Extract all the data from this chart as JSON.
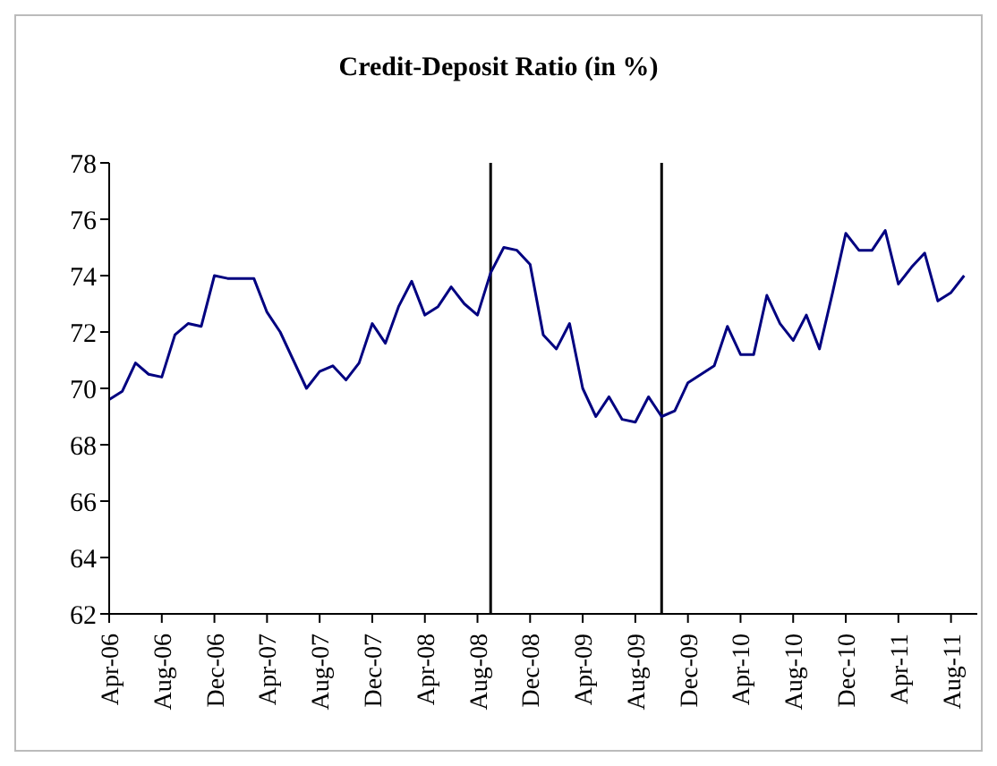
{
  "chart_data": {
    "type": "line",
    "title": "Credit-Deposit Ratio (in %)",
    "x": [
      "2006-04",
      "2006-05",
      "2006-06",
      "2006-07",
      "2006-08",
      "2006-09",
      "2006-10",
      "2006-11",
      "2006-12",
      "2007-01",
      "2007-02",
      "2007-03",
      "2007-04",
      "2007-05",
      "2007-06",
      "2007-07",
      "2007-08",
      "2007-09",
      "2007-10",
      "2007-11",
      "2007-12",
      "2008-01",
      "2008-02",
      "2008-03",
      "2008-04",
      "2008-05",
      "2008-06",
      "2008-07",
      "2008-08",
      "2008-09",
      "2008-10",
      "2008-11",
      "2008-12",
      "2009-01",
      "2009-02",
      "2009-03",
      "2009-04",
      "2009-05",
      "2009-06",
      "2009-07",
      "2009-08",
      "2009-09",
      "2009-10",
      "2009-11",
      "2009-12",
      "2010-01",
      "2010-02",
      "2010-03",
      "2010-04",
      "2010-05",
      "2010-06",
      "2010-07",
      "2010-08",
      "2010-09",
      "2010-10",
      "2010-11",
      "2010-12",
      "2011-01",
      "2011-02",
      "2011-03",
      "2011-04",
      "2011-05",
      "2011-06",
      "2011-07",
      "2011-08",
      "2011-09"
    ],
    "series": [
      {
        "color": "#000080",
        "values": [
          69.6,
          69.9,
          70.9,
          70.5,
          70.4,
          71.9,
          72.3,
          72.2,
          74.0,
          73.9,
          73.9,
          73.9,
          72.7,
          72.0,
          71.0,
          70.0,
          70.6,
          70.8,
          70.3,
          70.9,
          72.3,
          71.6,
          72.9,
          73.8,
          72.6,
          72.9,
          73.6,
          73.0,
          72.6,
          74.1,
          75.0,
          74.9,
          74.4,
          71.9,
          71.4,
          72.3,
          70.0,
          69.0,
          69.7,
          68.9,
          68.8,
          69.7,
          69.0,
          69.2,
          70.2,
          70.5,
          70.8,
          72.2,
          71.2,
          71.2,
          73.3,
          72.3,
          71.7,
          72.6,
          71.4,
          73.4,
          75.5,
          74.9,
          74.9,
          75.6,
          73.7,
          74.3,
          74.8,
          73.1,
          73.4,
          74.0
        ]
      }
    ],
    "xlim": [
      "2006-04",
      "2011-10"
    ],
    "xticks": [
      {
        "value": "2006-04",
        "label": "Apr-06"
      },
      {
        "value": "2006-08",
        "label": "Aug-06"
      },
      {
        "value": "2006-12",
        "label": "Dec-06"
      },
      {
        "value": "2007-04",
        "label": "Apr-07"
      },
      {
        "value": "2007-08",
        "label": "Aug-07"
      },
      {
        "value": "2007-12",
        "label": "Dec-07"
      },
      {
        "value": "2008-04",
        "label": "Apr-08"
      },
      {
        "value": "2008-08",
        "label": "Aug-08"
      },
      {
        "value": "2008-12",
        "label": "Dec-08"
      },
      {
        "value": "2009-04",
        "label": "Apr-09"
      },
      {
        "value": "2009-08",
        "label": "Aug-09"
      },
      {
        "value": "2009-12",
        "label": "Dec-09"
      },
      {
        "value": "2010-04",
        "label": "Apr-10"
      },
      {
        "value": "2010-08",
        "label": "Aug-10"
      },
      {
        "value": "2010-12",
        "label": "Dec-10"
      },
      {
        "value": "2011-04",
        "label": "Apr-11"
      },
      {
        "value": "2011-08",
        "label": "Aug-11"
      }
    ],
    "ylim": [
      62,
      78
    ],
    "yticks": [
      62,
      64,
      66,
      68,
      70,
      72,
      74,
      76,
      78
    ],
    "ref_lines": [
      {
        "axis": "x",
        "value": "2008-09",
        "color": "#000000"
      },
      {
        "axis": "x",
        "value": "2009-10",
        "color": "#000000"
      }
    ],
    "grid": false,
    "legend": false,
    "marker": "none",
    "line_style": "solid"
  }
}
